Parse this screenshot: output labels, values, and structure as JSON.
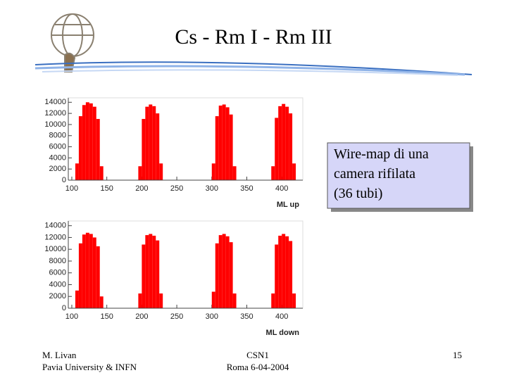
{
  "slide": {
    "title": "Cs - Rm I - Rm III",
    "textbox": {
      "lines": [
        "Wire-map di una",
        "camera rifilata",
        "(36 tubi)"
      ]
    },
    "footer": {
      "left": [
        "M. Livan",
        "Pavia University & INFN"
      ],
      "center": [
        "CSN1",
        "Roma 6-04-2004"
      ],
      "page": "15"
    }
  },
  "chart_data": [
    {
      "type": "histogram",
      "x_label": "ML up",
      "color": "#ff0000",
      "bins": [
        100,
        105,
        110,
        115,
        120,
        125,
        130,
        135,
        140,
        145,
        150,
        155,
        160,
        165,
        170,
        175,
        180,
        185,
        190,
        195,
        200,
        205,
        210,
        215,
        220,
        225,
        230,
        235,
        240,
        245,
        250,
        255,
        260,
        265,
        270,
        275,
        280,
        285,
        290,
        295,
        300,
        305,
        310,
        315,
        320,
        325,
        330,
        335,
        340,
        345,
        350,
        355,
        360,
        365,
        370,
        375,
        380,
        385,
        390,
        395,
        400,
        405,
        410,
        415,
        420,
        425
      ],
      "counts": [
        0,
        3000,
        11500,
        13500,
        14000,
        13800,
        13200,
        11000,
        2500,
        0,
        0,
        0,
        0,
        0,
        0,
        0,
        0,
        0,
        0,
        2500,
        11000,
        13200,
        13600,
        13300,
        12000,
        3000,
        0,
        0,
        0,
        0,
        0,
        0,
        0,
        0,
        0,
        0,
        0,
        0,
        0,
        0,
        3000,
        11500,
        13400,
        13600,
        13100,
        11800,
        2500,
        0,
        0,
        0,
        0,
        0,
        0,
        0,
        0,
        0,
        0,
        2500,
        11200,
        13300,
        13700,
        13200,
        12000,
        3000,
        0
      ],
      "xlim": [
        95,
        430
      ],
      "ylim": [
        0,
        14800
      ],
      "xticks": [
        100,
        150,
        200,
        250,
        300,
        350,
        400
      ],
      "yticks": [
        0,
        2000,
        4000,
        6000,
        8000,
        10000,
        12000,
        14000
      ]
    },
    {
      "type": "histogram",
      "x_label": "ML down",
      "color": "#ff0000",
      "bins": [
        100,
        105,
        110,
        115,
        120,
        125,
        130,
        135,
        140,
        145,
        150,
        155,
        160,
        165,
        170,
        175,
        180,
        185,
        190,
        195,
        200,
        205,
        210,
        215,
        220,
        225,
        230,
        235,
        240,
        245,
        250,
        255,
        260,
        265,
        270,
        275,
        280,
        285,
        290,
        295,
        300,
        305,
        310,
        315,
        320,
        325,
        330,
        335,
        340,
        345,
        350,
        355,
        360,
        365,
        370,
        375,
        380,
        385,
        390,
        395,
        400,
        405,
        410,
        415,
        420,
        425
      ],
      "counts": [
        0,
        3000,
        11000,
        12500,
        12800,
        12600,
        12000,
        10500,
        2000,
        0,
        0,
        0,
        0,
        0,
        0,
        0,
        0,
        0,
        0,
        2500,
        10800,
        12400,
        12600,
        12300,
        11500,
        2500,
        0,
        0,
        0,
        0,
        0,
        0,
        0,
        0,
        0,
        0,
        0,
        0,
        0,
        0,
        2800,
        11000,
        12400,
        12600,
        12200,
        11200,
        2500,
        0,
        0,
        0,
        0,
        0,
        0,
        0,
        0,
        0,
        0,
        2500,
        10800,
        12300,
        12600,
        12200,
        11400,
        2500,
        0
      ],
      "xlim": [
        95,
        430
      ],
      "ylim": [
        0,
        14800
      ],
      "xticks": [
        100,
        150,
        200,
        250,
        300,
        350,
        400
      ],
      "yticks": [
        0,
        2000,
        4000,
        6000,
        8000,
        10000,
        12000,
        14000
      ]
    }
  ]
}
